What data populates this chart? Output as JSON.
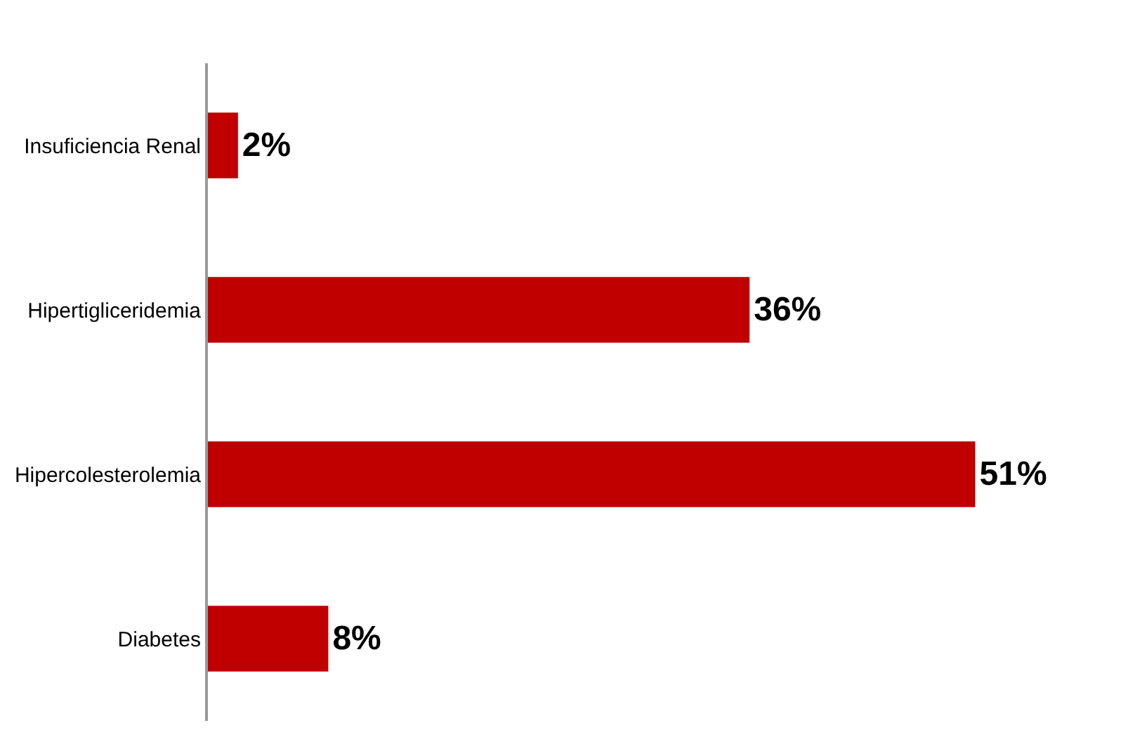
{
  "chart_data": {
    "type": "bar",
    "orientation": "horizontal",
    "categories": [
      "Insuficiencia Renal",
      "Hipertigliceridemia",
      "Hipercolesterolemia",
      "Diabetes"
    ],
    "values": [
      2,
      36,
      51,
      8
    ],
    "value_labels": [
      "2%",
      "36%",
      "51%",
      "8%"
    ],
    "color": "#c00000"
  }
}
